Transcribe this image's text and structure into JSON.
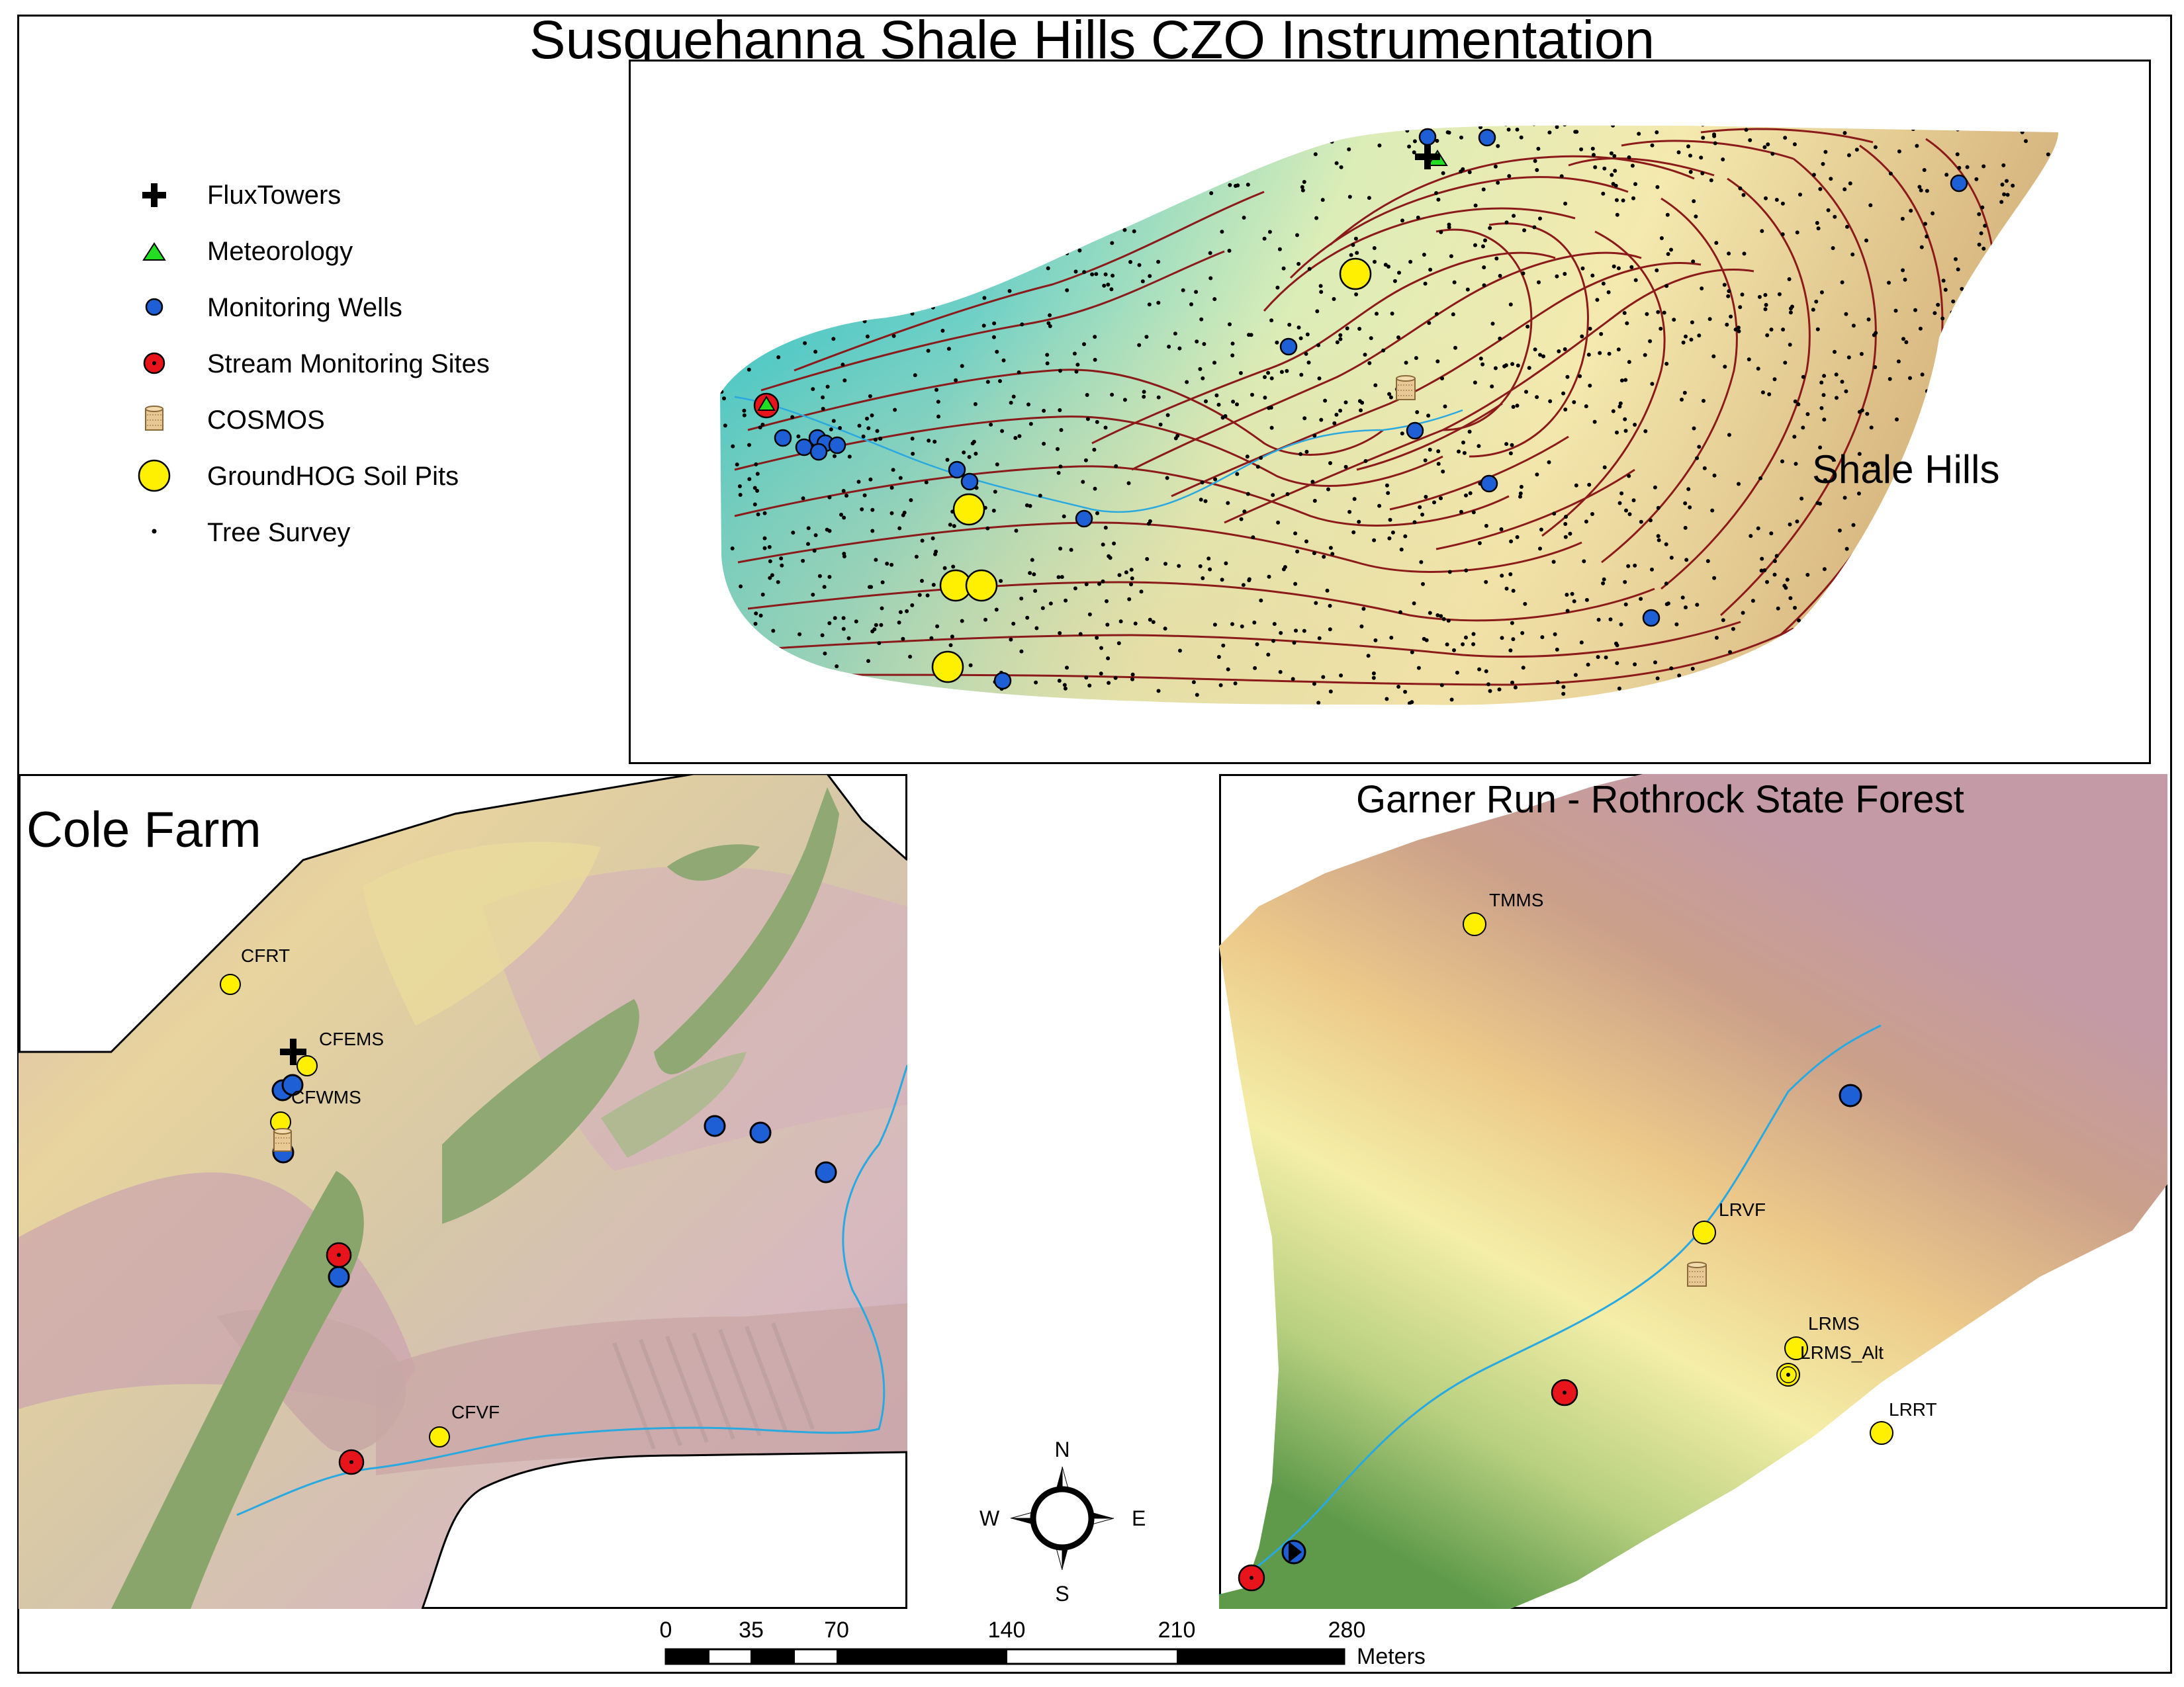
{
  "title": "Susquehanna Shale Hills CZO Instrumentation",
  "legend": {
    "items": [
      {
        "label": "FluxTowers",
        "icon": "black-cross-icon"
      },
      {
        "label": "Meteorology",
        "icon": "green-triangle-icon"
      },
      {
        "label": "Monitoring Wells",
        "icon": "blue-dot-icon"
      },
      {
        "label": "Stream Monitoring Sites",
        "icon": "red-dot-icon"
      },
      {
        "label": "COSMOS",
        "icon": "cosmos-cylinder-icon"
      },
      {
        "label": "GroundHOG Soil Pits",
        "icon": "yellow-circle-icon"
      },
      {
        "label": "Tree Survey",
        "icon": "small-black-dot-icon"
      }
    ]
  },
  "shale_hills": {
    "label": "Shale Hills"
  },
  "cole_farm": {
    "label": "Cole Farm",
    "sites": {
      "cfrt": "CFRT",
      "cfems": "CFEMS",
      "cfwms": "CFWMS",
      "cfvf": "CFVF"
    }
  },
  "garner_run": {
    "label": "Garner Run - Rothrock State Forest",
    "sites": {
      "tmms": "TMMS",
      "lrvf": "LRVF",
      "lrms": "LRMS",
      "lrms_alt": "LRMS_Alt",
      "lrrt": "LRRT"
    }
  },
  "north_arrow": {
    "n": "N",
    "s": "S",
    "e": "E",
    "w": "W"
  },
  "scale_bar": {
    "ticks": [
      "0",
      "35",
      "70",
      "140",
      "210",
      "280"
    ],
    "unit": "Meters"
  },
  "colors": {
    "well": "#1f5fd6",
    "stream_site": "#e8141c",
    "soil_pit": "#ffef00",
    "meteorology": "#22dd22",
    "contour": "#8b1a1a",
    "stream": "#2aa9e0"
  }
}
